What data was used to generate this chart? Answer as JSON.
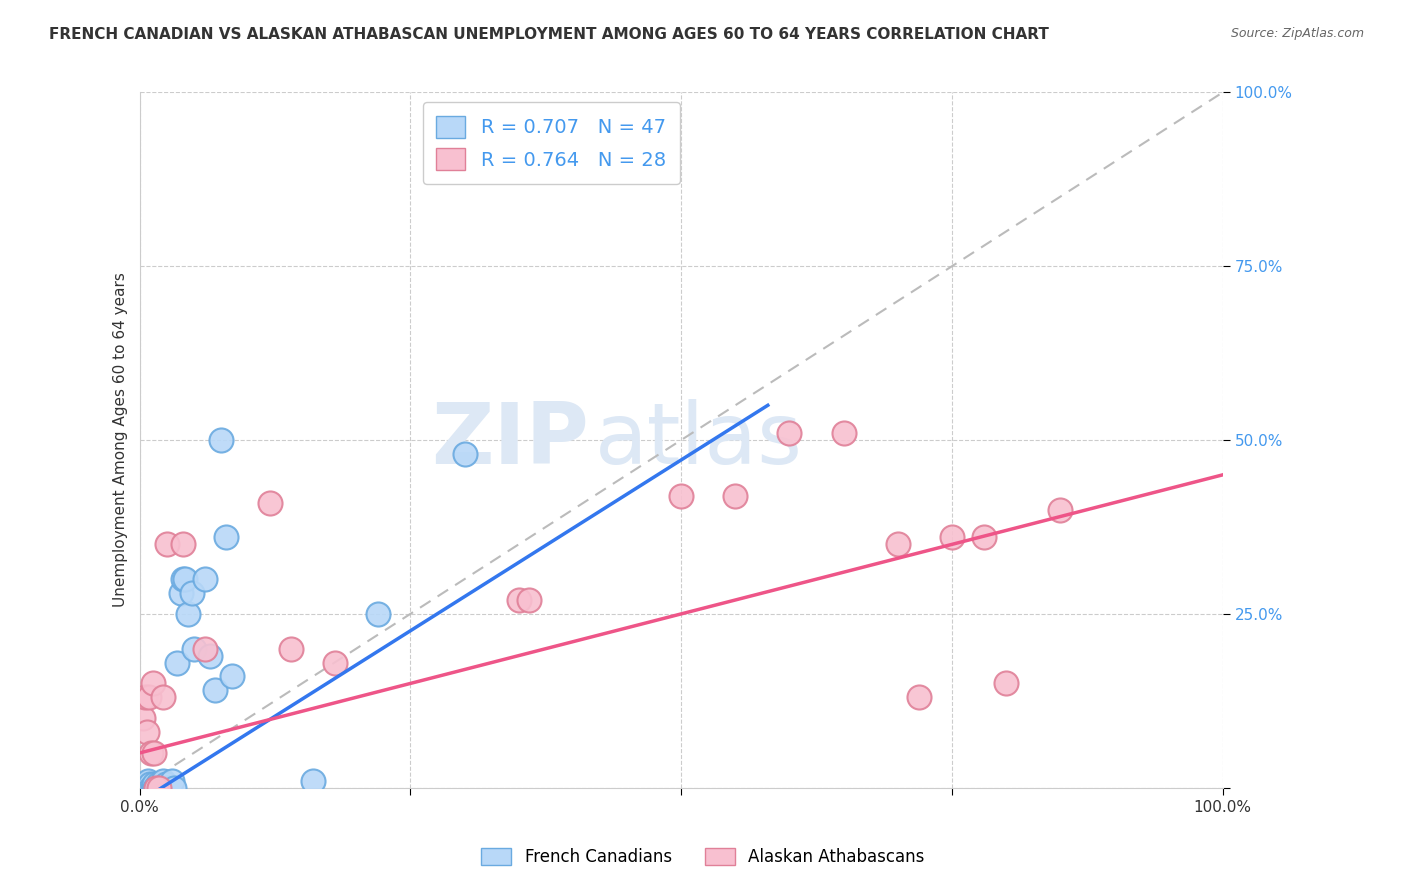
{
  "title": "FRENCH CANADIAN VS ALASKAN ATHABASCAN UNEMPLOYMENT AMONG AGES 60 TO 64 YEARS CORRELATION CHART",
  "source": "Source: ZipAtlas.com",
  "xlabel": "",
  "ylabel": "Unemployment Among Ages 60 to 64 years",
  "xlim": [
    0,
    1.0
  ],
  "ylim": [
    0,
    1.0
  ],
  "xticks": [
    0.0,
    0.25,
    0.5,
    0.75,
    1.0
  ],
  "yticks": [
    0.0,
    0.25,
    0.5,
    0.75,
    1.0
  ],
  "xtick_labels_show": [
    "0.0%",
    "",
    "",
    "",
    "100.0%"
  ],
  "ytick_labels_show": [
    "",
    "25.0%",
    "50.0%",
    "75.0%",
    "100.0%"
  ],
  "background_color": "#ffffff",
  "watermark_part1": "ZIP",
  "watermark_part2": "atlas",
  "french_canadian_color": "#b8d8f8",
  "french_canadian_edge": "#6aaae0",
  "alaskan_color": "#f8c0d0",
  "alaskan_edge": "#e08098",
  "french_canadian_R": 0.707,
  "french_canadian_N": 47,
  "alaskan_R": 0.764,
  "alaskan_N": 28,
  "legend_label_fc": "French Canadians",
  "legend_label_aa": "Alaskan Athabascans",
  "french_canadian_line_color": "#3377ee",
  "alaskan_line_color": "#ee5588",
  "dashed_line_color": "#bbbbbb",
  "fc_line_x0": 0.0,
  "fc_line_y0": -0.02,
  "fc_line_x1": 0.58,
  "fc_line_y1": 0.55,
  "aa_line_x0": 0.0,
  "aa_line_y0": 0.05,
  "aa_line_x1": 1.0,
  "aa_line_y1": 0.45,
  "fc_scatter_x": [
    0.002,
    0.003,
    0.004,
    0.005,
    0.005,
    0.006,
    0.007,
    0.007,
    0.008,
    0.008,
    0.009,
    0.01,
    0.01,
    0.011,
    0.012,
    0.013,
    0.013,
    0.014,
    0.015,
    0.016,
    0.017,
    0.018,
    0.02,
    0.021,
    0.022,
    0.023,
    0.024,
    0.025,
    0.027,
    0.03,
    0.032,
    0.035,
    0.038,
    0.04,
    0.042,
    0.045,
    0.048,
    0.05,
    0.06,
    0.065,
    0.07,
    0.075,
    0.08,
    0.085,
    0.16,
    0.22,
    0.3
  ],
  "fc_scatter_y": [
    0.0,
    0.0,
    0.0,
    0.0,
    0.005,
    0.0,
    0.0,
    0.005,
    0.0,
    0.01,
    0.0,
    0.0,
    0.005,
    0.0,
    0.0,
    0.0,
    0.005,
    0.0,
    0.0,
    0.0,
    0.005,
    0.0,
    0.0,
    0.005,
    0.01,
    0.0,
    0.005,
    0.0,
    0.0,
    0.01,
    0.0,
    0.18,
    0.28,
    0.3,
    0.3,
    0.25,
    0.28,
    0.2,
    0.3,
    0.19,
    0.14,
    0.5,
    0.36,
    0.16,
    0.01,
    0.25,
    0.48
  ],
  "aa_scatter_x": [
    0.003,
    0.005,
    0.007,
    0.009,
    0.011,
    0.012,
    0.013,
    0.015,
    0.018,
    0.022,
    0.025,
    0.04,
    0.06,
    0.12,
    0.14,
    0.18,
    0.35,
    0.36,
    0.5,
    0.55,
    0.6,
    0.65,
    0.7,
    0.72,
    0.75,
    0.78,
    0.8,
    0.85
  ],
  "aa_scatter_y": [
    0.1,
    0.13,
    0.08,
    0.13,
    0.05,
    0.15,
    0.05,
    0.0,
    0.0,
    0.13,
    0.35,
    0.35,
    0.2,
    0.41,
    0.2,
    0.18,
    0.27,
    0.27,
    0.42,
    0.42,
    0.51,
    0.51,
    0.35,
    0.13,
    0.36,
    0.36,
    0.15,
    0.4
  ]
}
